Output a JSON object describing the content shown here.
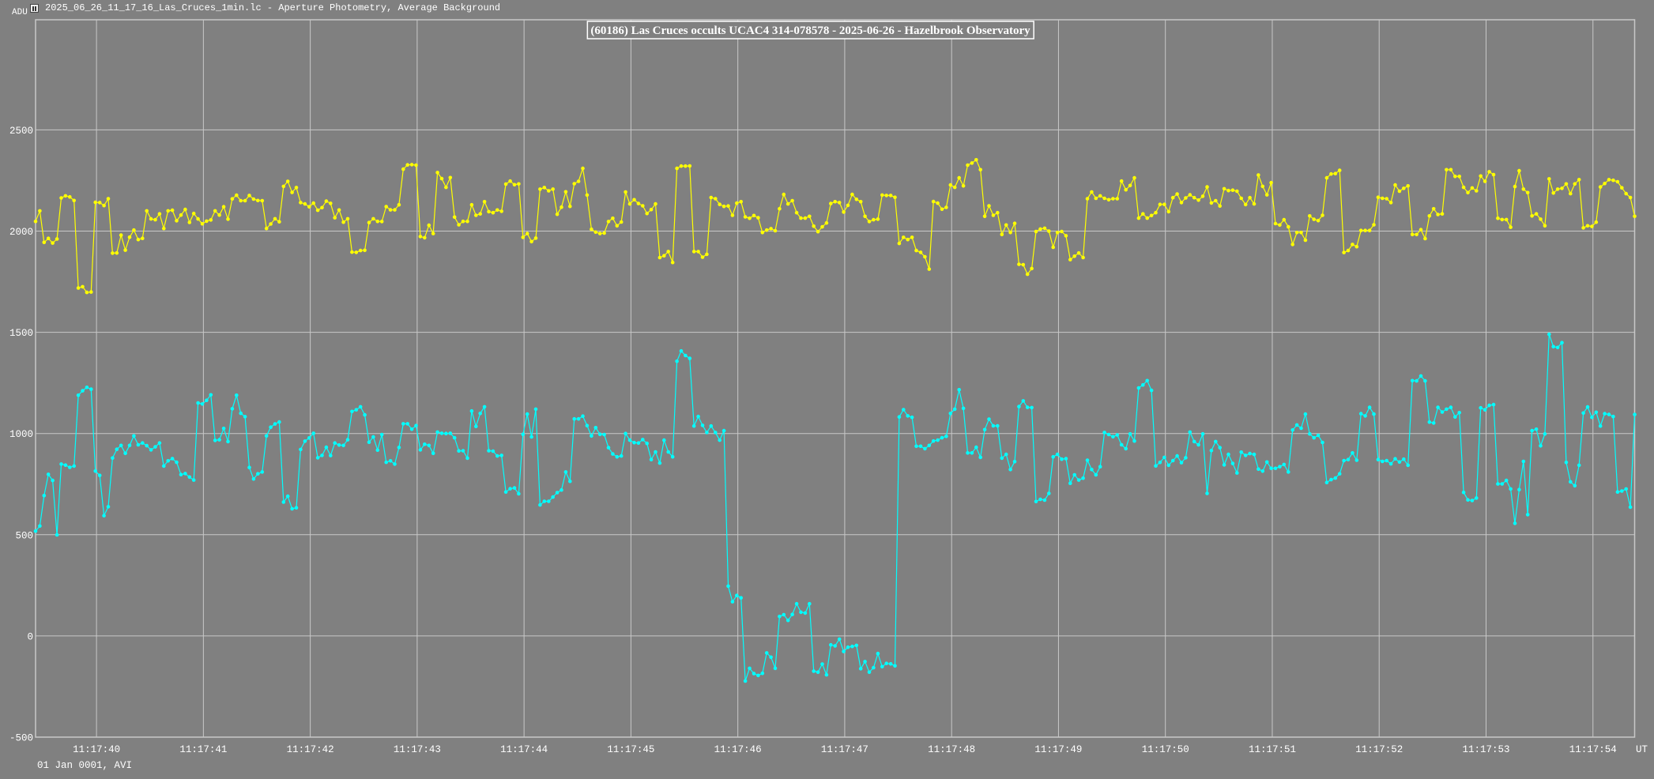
{
  "window": {
    "title": "2025_06_26_11_17_16_Las_Cruces_1min.lc - Aperture Photometry, Average Background",
    "icon": "lightcurve-app-icon"
  },
  "chart_data": {
    "type": "line",
    "title": "(60186) Las Cruces occults UCAC4 314-078578 - 2025-06-26 - Hazelbrook Observatory",
    "ylabel": "ADU",
    "xlabel": "UT",
    "date_label": "01 Jan 0001, AVI",
    "ylim": [
      -500,
      3044
    ],
    "yticks": [
      -500,
      0,
      500,
      1000,
      1500,
      2000,
      2500
    ],
    "ytick_labels": [
      "-500",
      "0",
      "500",
      "1000",
      "1500",
      "2000",
      "2500"
    ],
    "x_start_seconds_after_11_17_00": 39.43,
    "frame_interval_s": 0.04,
    "xticks_seconds": [
      40,
      41,
      42,
      43,
      44,
      45,
      46,
      47,
      48,
      49,
      50,
      51,
      52,
      53,
      54
    ],
    "xtick_labels": [
      "11:17:40",
      "11:17:41",
      "11:17:42",
      "11:17:43",
      "11:17:44",
      "11:17:45",
      "11:17:46",
      "11:17:47",
      "11:17:48",
      "11:17:49",
      "11:17:50",
      "11:17:51",
      "11:17:52",
      "11:17:53",
      "11:17:54"
    ],
    "grid": true,
    "series": [
      {
        "color": "#ffff00",
        "values": [
          2048,
          2100,
          1944,
          1964,
          1941,
          1961,
          2164,
          2174,
          2169,
          2151,
          1719,
          1725,
          1697,
          1699,
          2142,
          2141,
          2126,
          2160,
          1891,
          1892,
          1980,
          1906,
          1970,
          2005,
          1958,
          1964,
          2100,
          2060,
          2056,
          2085,
          2013,
          2100,
          2103,
          2051,
          2079,
          2107,
          2043,
          2087,
          2060,
          2036,
          2049,
          2055,
          2100,
          2079,
          2120,
          2059,
          2159,
          2177,
          2150,
          2150,
          2176,
          2158,
          2151,
          2150,
          2013,
          2035,
          2061,
          2046,
          2221,
          2246,
          2191,
          2215,
          2141,
          2134,
          2120,
          2138,
          2103,
          2116,
          2148,
          2137,
          2066,
          2104,
          2044,
          2061,
          1896,
          1895,
          1904,
          1905,
          2042,
          2061,
          2048,
          2047,
          2121,
          2105,
          2105,
          2130,
          2306,
          2327,
          2328,
          2326,
          1973,
          1967,
          2029,
          1988,
          2289,
          2259,
          2216,
          2264,
          2069,
          2031,
          2048,
          2048,
          2130,
          2078,
          2085,
          2145,
          2096,
          2091,
          2104,
          2098,
          2232,
          2247,
          2229,
          2233,
          1969,
          1988,
          1948,
          1965,
          2207,
          2215,
          2199,
          2207,
          2083,
          2118,
          2194,
          2122,
          2234,
          2246,
          2310,
          2178,
          2009,
          1995,
          1988,
          1990,
          2047,
          2063,
          2026,
          2045,
          2193,
          2134,
          2155,
          2136,
          2125,
          2087,
          2106,
          2134,
          1869,
          1878,
          1899,
          1845,
          2310,
          2321,
          2321,
          2322,
          1899,
          1899,
          1871,
          1885,
          2166,
          2160,
          2132,
          2122,
          2124,
          2078,
          2138,
          2145,
          2070,
          2063,
          2077,
          2066,
          1993,
          2005,
          2012,
          2002,
          2110,
          2181,
          2134,
          2150,
          2091,
          2064,
          2064,
          2073,
          2024,
          1997,
          2021,
          2040,
          2136,
          2145,
          2141,
          2094,
          2127,
          2181,
          2157,
          2145,
          2073,
          2047,
          2056,
          2059,
          2178,
          2176,
          2176,
          2167,
          1939,
          1969,
          1958,
          1969,
          1904,
          1895,
          1873,
          1812,
          2146,
          2138,
          2108,
          2117,
          2228,
          2216,
          2263,
          2223,
          2326,
          2336,
          2352,
          2303,
          2073,
          2125,
          2078,
          2091,
          1983,
          2030,
          1993,
          2038,
          1836,
          1834,
          1787,
          1815,
          1998,
          2010,
          2014,
          2000,
          1920,
          1993,
          1998,
          1977,
          1859,
          1876,
          1892,
          1869,
          2160,
          2193,
          2162,
          2174,
          2162,
          2155,
          2160,
          2160,
          2247,
          2204,
          2225,
          2263,
          2064,
          2085,
          2064,
          2077,
          2091,
          2132,
          2132,
          2096,
          2165,
          2183,
          2141,
          2164,
          2179,
          2165,
          2153,
          2172,
          2218,
          2139,
          2150,
          2124,
          2209,
          2200,
          2202,
          2197,
          2162,
          2131,
          2165,
          2134,
          2277,
          2221,
          2179,
          2239,
          2037,
          2030,
          2056,
          2021,
          1934,
          1993,
          1993,
          1955,
          2075,
          2058,
          2052,
          2078,
          2263,
          2282,
          2284,
          2300,
          1894,
          1904,
          1934,
          1923,
          2003,
          2003,
          2003,
          2031,
          2167,
          2162,
          2160,
          2141,
          2228,
          2197,
          2211,
          2223,
          1983,
          1983,
          2007,
          1963,
          2075,
          2110,
          2082,
          2085,
          2303,
          2303,
          2270,
          2270,
          2216,
          2190,
          2213,
          2199,
          2272,
          2246,
          2293,
          2279,
          2063,
          2057,
          2057,
          2019,
          2220,
          2298,
          2207,
          2190,
          2075,
          2085,
          2059,
          2026,
          2258,
          2188,
          2207,
          2211,
          2233,
          2185,
          2233,
          2254,
          2016,
          2026,
          2023,
          2044,
          2218,
          2235,
          2254,
          2251,
          2244,
          2214,
          2185,
          2166,
          2073
        ]
      },
      {
        "color": "#00ffff",
        "values": [
          518,
          543,
          693,
          798,
          768,
          499,
          849,
          844,
          833,
          839,
          1189,
          1211,
          1228,
          1219,
          814,
          793,
          594,
          638,
          879,
          922,
          941,
          902,
          941,
          988,
          944,
          953,
          940,
          919,
          934,
          953,
          839,
          865,
          876,
          858,
          797,
          802,
          785,
          770,
          1151,
          1146,
          1164,
          1191,
          966,
          969,
          1025,
          960,
          1122,
          1189,
          1100,
          1083,
          832,
          775,
          801,
          810,
          988,
          1031,
          1047,
          1057,
          661,
          690,
          628,
          633,
          921,
          962,
          978,
          1001,
          880,
          892,
          932,
          891,
          953,
          943,
          941,
          969,
          1109,
          1117,
          1132,
          1092,
          957,
          983,
          918,
          995,
          858,
          865,
          849,
          931,
          1048,
          1048,
          1021,
          1039,
          919,
          947,
          941,
          902,
          1007,
          1001,
          1000,
          1001,
          979,
          914,
          915,
          878,
          1111,
          1035,
          1099,
          1132,
          915,
          913,
          889,
          892,
          711,
          727,
          731,
          702,
          996,
          1096,
          983,
          1120,
          647,
          665,
          665,
          686,
          708,
          721,
          810,
          764,
          1072,
          1072,
          1086,
          1039,
          988,
          1029,
          996,
          995,
          930,
          899,
          885,
          889,
          1000,
          967,
          955,
          953,
          970,
          951,
          871,
          909,
          854,
          967,
          909,
          885,
          1357,
          1408,
          1385,
          1371,
          1037,
          1084,
          1040,
          1005,
          1037,
          1005,
          967,
          1014,
          246,
          169,
          200,
          188,
          -223,
          -160,
          -186,
          -195,
          -185,
          -84,
          -105,
          -160,
          96,
          105,
          77,
          106,
          159,
          117,
          113,
          159,
          -174,
          -179,
          -139,
          -192,
          -44,
          -49,
          -16,
          -77,
          -56,
          -52,
          -47,
          -162,
          -127,
          -179,
          -157,
          -87,
          -152,
          -136,
          -138,
          -148,
          1082,
          1118,
          1087,
          1080,
          937,
          937,
          925,
          941,
          963,
          967,
          979,
          986,
          1099,
          1120,
          1216,
          1124,
          904,
          904,
          932,
          882,
          1019,
          1071,
          1038,
          1038,
          878,
          897,
          822,
          861,
          1133,
          1161,
          1129,
          1128,
          664,
          675,
          671,
          704,
          885,
          897,
          873,
          876,
          754,
          796,
          770,
          779,
          868,
          822,
          796,
          836,
          1005,
          995,
          984,
          993,
          944,
          925,
          998,
          963,
          1225,
          1240,
          1261,
          1213,
          840,
          857,
          882,
          843,
          866,
          889,
          856,
          880,
          1007,
          960,
          944,
          998,
          704,
          916,
          960,
          930,
          845,
          897,
          852,
          805,
          908,
          892,
          901,
          897,
          824,
          814,
          859,
          828,
          828,
          836,
          847,
          810,
          1017,
          1042,
          1026,
          1096,
          998,
          979,
          991,
          956,
          758,
          772,
          780,
          801,
          866,
          871,
          904,
          868,
          1098,
          1087,
          1129,
          1096,
          871,
          862,
          866,
          850,
          875,
          859,
          873,
          843,
          1261,
          1260,
          1284,
          1260,
          1056,
          1052,
          1129,
          1106,
          1120,
          1129,
          1082,
          1103,
          709,
          672,
          669,
          681,
          1127,
          1117,
          1139,
          1143,
          751,
          751,
          768,
          726,
          556,
          723,
          862,
          599,
          1014,
          1021,
          939,
          998,
          1490,
          1429,
          1425,
          1449,
          857,
          761,
          742,
          843,
          1101,
          1131,
          1080,
          1105,
          1037,
          1098,
          1094,
          1084,
          711,
          716,
          726,
          636,
          1094
        ]
      }
    ]
  }
}
